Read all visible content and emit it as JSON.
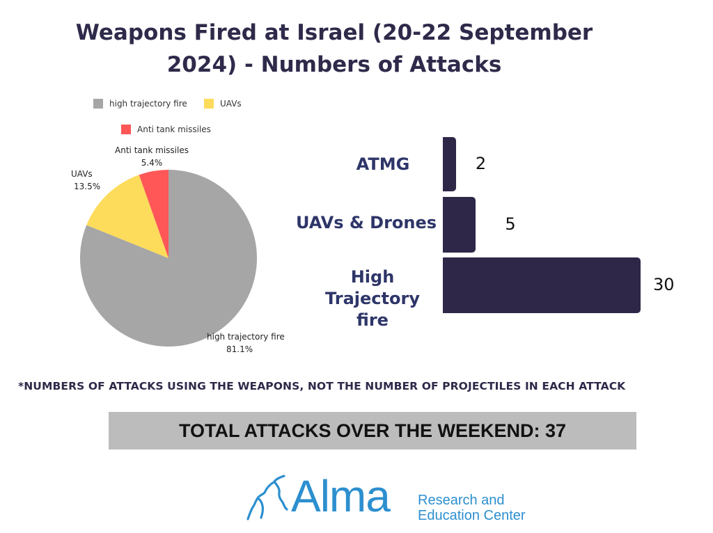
{
  "title": "Weapons Fired at Israel (20-22 September 2024) - Numbers of Attacks",
  "footnote": "*NUMBERS OF ATTACKS USING THE WEAPONS, NOT THE NUMBER OF PROJECTILES IN EACH ATTACK",
  "total": "TOTAL ATTACKS OVER THE WEEKEND: 37",
  "logo": {
    "name": "Alma",
    "line1": "Research and",
    "line2": "Education Center",
    "color": "#2c8fcf"
  },
  "chart_data": [
    {
      "type": "pie",
      "legend": [
        {
          "label": "high trajectory fire",
          "color": "#a6a6a6"
        },
        {
          "label": "UAVs",
          "color": "#fddc5c"
        },
        {
          "label": "Anti tank missiles",
          "color": "#ff5757"
        }
      ],
      "slices": [
        {
          "label": "high trajectory fire",
          "value": 81.1,
          "pct_label": "81.1%",
          "color": "#a6a6a6"
        },
        {
          "label": "UAVs",
          "value": 13.5,
          "pct_label": "13.5%",
          "color": "#fddc5c"
        },
        {
          "label": "Anti tank missiles",
          "value": 5.4,
          "pct_label": "5.4%",
          "color": "#ff5757"
        }
      ],
      "legend_placement": "top"
    },
    {
      "type": "bar",
      "orientation": "horizontal",
      "categories": [
        "ATMG",
        "UAVs & Drones",
        "High Trajectory fire"
      ],
      "values": [
        2,
        5,
        30
      ],
      "value_labels": [
        "2",
        "5",
        "30"
      ],
      "bar_color": "#2e2748",
      "xlim": [
        0,
        30
      ]
    }
  ]
}
